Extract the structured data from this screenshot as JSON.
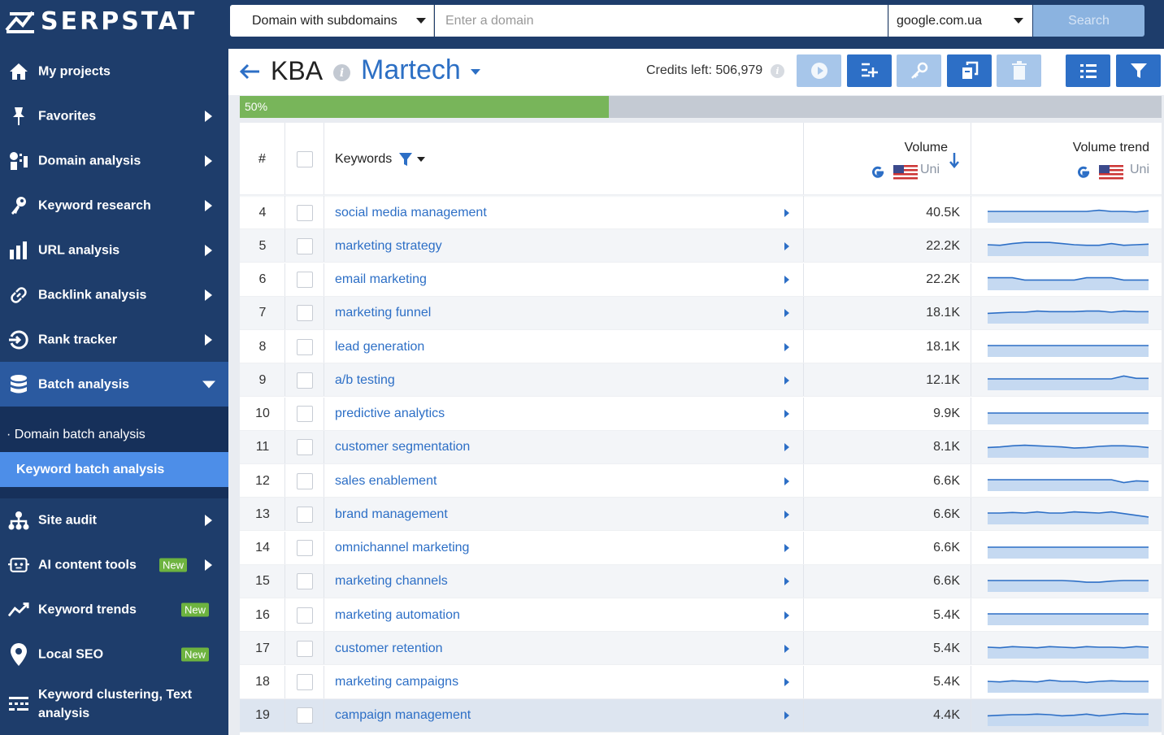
{
  "app": {
    "logo_text": "SERPSTAT"
  },
  "sidebar": {
    "items": [
      {
        "label": "My projects",
        "icon": "home-icon"
      },
      {
        "label": "Favorites",
        "icon": "pin-icon"
      },
      {
        "label": "Domain analysis",
        "icon": "domain-icon"
      },
      {
        "label": "Keyword research",
        "icon": "key-icon"
      },
      {
        "label": "URL analysis",
        "icon": "bar-chart-icon"
      },
      {
        "label": "Backlink analysis",
        "icon": "link-icon"
      },
      {
        "label": "Rank tracker",
        "icon": "rank-icon"
      },
      {
        "label": "Batch analysis",
        "icon": "database-icon"
      },
      {
        "label": "Site audit",
        "icon": "sitemap-icon"
      },
      {
        "label": "AI content tools",
        "icon": "ai-icon",
        "badge": "New"
      },
      {
        "label": "Keyword trends",
        "icon": "trend-icon",
        "badge": "New"
      },
      {
        "label": "Local SEO",
        "icon": "location-pin-icon",
        "badge": "New"
      },
      {
        "label": "Keyword clustering, Text analysis",
        "icon": "clustering-icon"
      }
    ],
    "batch_submenu": [
      {
        "label": "· Domain batch analysis"
      },
      {
        "label": "Keyword batch analysis",
        "active": true
      }
    ]
  },
  "search": {
    "type_label": "Domain with subdomains",
    "placeholder": "Enter a domain",
    "database": "google.com.ua",
    "button_label": "Search"
  },
  "header": {
    "title": "KBA",
    "project": "Martech",
    "credits_label": "Credits left: 506,979"
  },
  "progress": {
    "label": "50%",
    "value": 0.5
  },
  "table": {
    "columns": {
      "num": "#",
      "keywords": "Keywords",
      "volume": "Volume",
      "volume_sub": "Uni",
      "trend": "Volume trend",
      "trend_sub": "Uni"
    },
    "rows": [
      {
        "n": "4",
        "kw": "social media management",
        "vol": "40.5K",
        "trend": [
          0.5,
          0.5,
          0.5,
          0.5,
          0.5,
          0.5,
          0.5,
          0.5,
          0.5,
          0.6,
          0.5,
          0.5,
          0.45,
          0.55
        ]
      },
      {
        "n": "5",
        "kw": "marketing strategy",
        "vol": "22.2K",
        "trend": [
          0.5,
          0.45,
          0.6,
          0.7,
          0.7,
          0.7,
          0.6,
          0.5,
          0.45,
          0.45,
          0.6,
          0.45,
          0.5,
          0.55
        ]
      },
      {
        "n": "6",
        "kw": "email marketing",
        "vol": "22.2K",
        "trend": [
          0.6,
          0.6,
          0.6,
          0.4,
          0.4,
          0.4,
          0.4,
          0.4,
          0.6,
          0.6,
          0.6,
          0.4,
          0.4,
          0.4
        ]
      },
      {
        "n": "7",
        "kw": "marketing funnel",
        "vol": "18.1K",
        "trend": [
          0.4,
          0.45,
          0.5,
          0.5,
          0.6,
          0.55,
          0.55,
          0.55,
          0.6,
          0.6,
          0.5,
          0.6,
          0.55,
          0.55
        ]
      },
      {
        "n": "8",
        "kw": "lead generation",
        "vol": "18.1K",
        "trend": [
          0.5,
          0.5,
          0.5,
          0.5,
          0.5,
          0.5,
          0.5,
          0.5,
          0.5,
          0.5,
          0.5,
          0.5,
          0.5,
          0.5
        ]
      },
      {
        "n": "9",
        "kw": "a/b testing",
        "vol": "12.1K",
        "trend": [
          0.5,
          0.5,
          0.5,
          0.5,
          0.5,
          0.5,
          0.5,
          0.5,
          0.5,
          0.5,
          0.5,
          0.75,
          0.55,
          0.55
        ]
      },
      {
        "n": "10",
        "kw": "predictive analytics",
        "vol": "9.9K",
        "trend": [
          0.5,
          0.5,
          0.5,
          0.5,
          0.5,
          0.5,
          0.5,
          0.5,
          0.5,
          0.5,
          0.5,
          0.5,
          0.5,
          0.5
        ]
      },
      {
        "n": "11",
        "kw": "customer segmentation",
        "vol": "8.1K",
        "trend": [
          0.4,
          0.45,
          0.55,
          0.6,
          0.55,
          0.5,
          0.45,
          0.35,
          0.4,
          0.5,
          0.55,
          0.55,
          0.5,
          0.4
        ]
      },
      {
        "n": "12",
        "kw": "sales enablement",
        "vol": "6.6K",
        "trend": [
          0.5,
          0.5,
          0.5,
          0.5,
          0.5,
          0.5,
          0.5,
          0.5,
          0.5,
          0.5,
          0.5,
          0.25,
          0.4,
          0.35
        ]
      },
      {
        "n": "13",
        "kw": "brand management",
        "vol": "6.6K",
        "trend": [
          0.5,
          0.5,
          0.55,
          0.5,
          0.6,
          0.5,
          0.5,
          0.6,
          0.55,
          0.5,
          0.6,
          0.45,
          0.3,
          0.15
        ]
      },
      {
        "n": "14",
        "kw": "omnichannel marketing",
        "vol": "6.6K",
        "trend": [
          0.5,
          0.5,
          0.5,
          0.5,
          0.5,
          0.5,
          0.5,
          0.5,
          0.5,
          0.5,
          0.5,
          0.5,
          0.5,
          0.5
        ]
      },
      {
        "n": "15",
        "kw": "marketing channels",
        "vol": "6.6K",
        "trend": [
          0.5,
          0.5,
          0.5,
          0.5,
          0.5,
          0.5,
          0.5,
          0.45,
          0.35,
          0.35,
          0.45,
          0.5,
          0.5,
          0.5
        ]
      },
      {
        "n": "16",
        "kw": "marketing automation",
        "vol": "5.4K",
        "trend": [
          0.5,
          0.5,
          0.5,
          0.5,
          0.5,
          0.5,
          0.5,
          0.5,
          0.5,
          0.5,
          0.5,
          0.5,
          0.5,
          0.5
        ]
      },
      {
        "n": "17",
        "kw": "customer retention",
        "vol": "5.4K",
        "trend": [
          0.5,
          0.45,
          0.55,
          0.5,
          0.45,
          0.55,
          0.5,
          0.45,
          0.55,
          0.5,
          0.5,
          0.45,
          0.55,
          0.5
        ]
      },
      {
        "n": "18",
        "kw": "marketing campaigns",
        "vol": "5.4K",
        "trend": [
          0.5,
          0.45,
          0.55,
          0.5,
          0.45,
          0.6,
          0.5,
          0.5,
          0.4,
          0.5,
          0.55,
          0.5,
          0.5,
          0.5
        ]
      },
      {
        "n": "19",
        "kw": "campaign management",
        "vol": "4.4K",
        "trend": [
          0.4,
          0.45,
          0.5,
          0.5,
          0.55,
          0.5,
          0.4,
          0.45,
          0.55,
          0.4,
          0.5,
          0.6,
          0.55,
          0.55
        ],
        "highlight": true
      }
    ]
  },
  "colors": {
    "sidebar": "#1e3d6b",
    "accent": "#2d6fc6",
    "progress": "#78b55a",
    "badge": "#6db33f"
  }
}
